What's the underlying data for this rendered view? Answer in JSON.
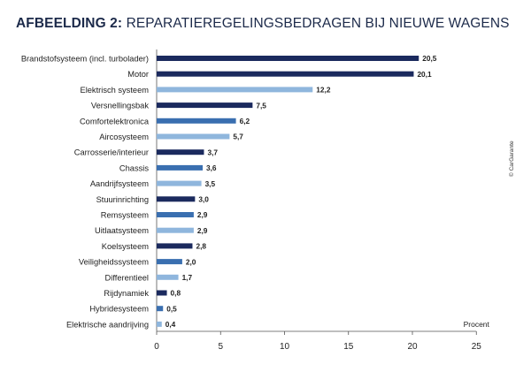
{
  "header": {
    "title_lead": "AFBEELDING 2:",
    "title_rest": "REPARATIEREGELINGSBEDRAGEN BIJ NIEUWE WAGENS"
  },
  "credit": "© CarGarante",
  "colors": {
    "dark": "#1b2a5e",
    "mid": "#3a6fb0",
    "light": "#8fb6dd",
    "text": "#222222",
    "axis": "#555555"
  },
  "chart_data": {
    "type": "bar",
    "orientation": "horizontal",
    "categories": [
      "Brandstofsysteem (incl. turbolader)",
      "Motor",
      "Elektrisch systeem",
      "Versnellingsbak",
      "Comfortelektronica",
      "Aircosysteem",
      "Carrosserie/interieur",
      "Chassis",
      "Aandrijfsysteem",
      "Stuurinrichting",
      "Remsysteem",
      "Uitlaatsysteem",
      "Koelsysteem",
      "Veiligheidssysteem",
      "Differentieel",
      "Rijdynamiek",
      "Hybridesysteem",
      "Elektrische aandrijving"
    ],
    "values": [
      20.5,
      20.1,
      12.2,
      7.5,
      6.2,
      5.7,
      3.7,
      3.6,
      3.5,
      3.0,
      2.9,
      2.9,
      2.8,
      2.0,
      1.7,
      0.8,
      0.5,
      0.4
    ],
    "value_labels": [
      "20,5",
      "20,1",
      "12,2",
      "7,5",
      "6,2",
      "5,7",
      "3,7",
      "3,6",
      "3,5",
      "3,0",
      "2,9",
      "2,9",
      "2,8",
      "2,0",
      "1,7",
      "0,8",
      "0,5",
      "0,4"
    ],
    "bar_shades": [
      "dark",
      "dark",
      "light",
      "dark",
      "mid",
      "light",
      "dark",
      "mid",
      "light",
      "dark",
      "mid",
      "light",
      "dark",
      "mid",
      "light",
      "dark",
      "mid",
      "light"
    ],
    "xlim": [
      0,
      25
    ],
    "xticks": [
      0,
      5,
      10,
      15,
      20,
      25
    ],
    "xlabel": "Procent",
    "ylabel": "",
    "grid": false,
    "legend": "none"
  }
}
